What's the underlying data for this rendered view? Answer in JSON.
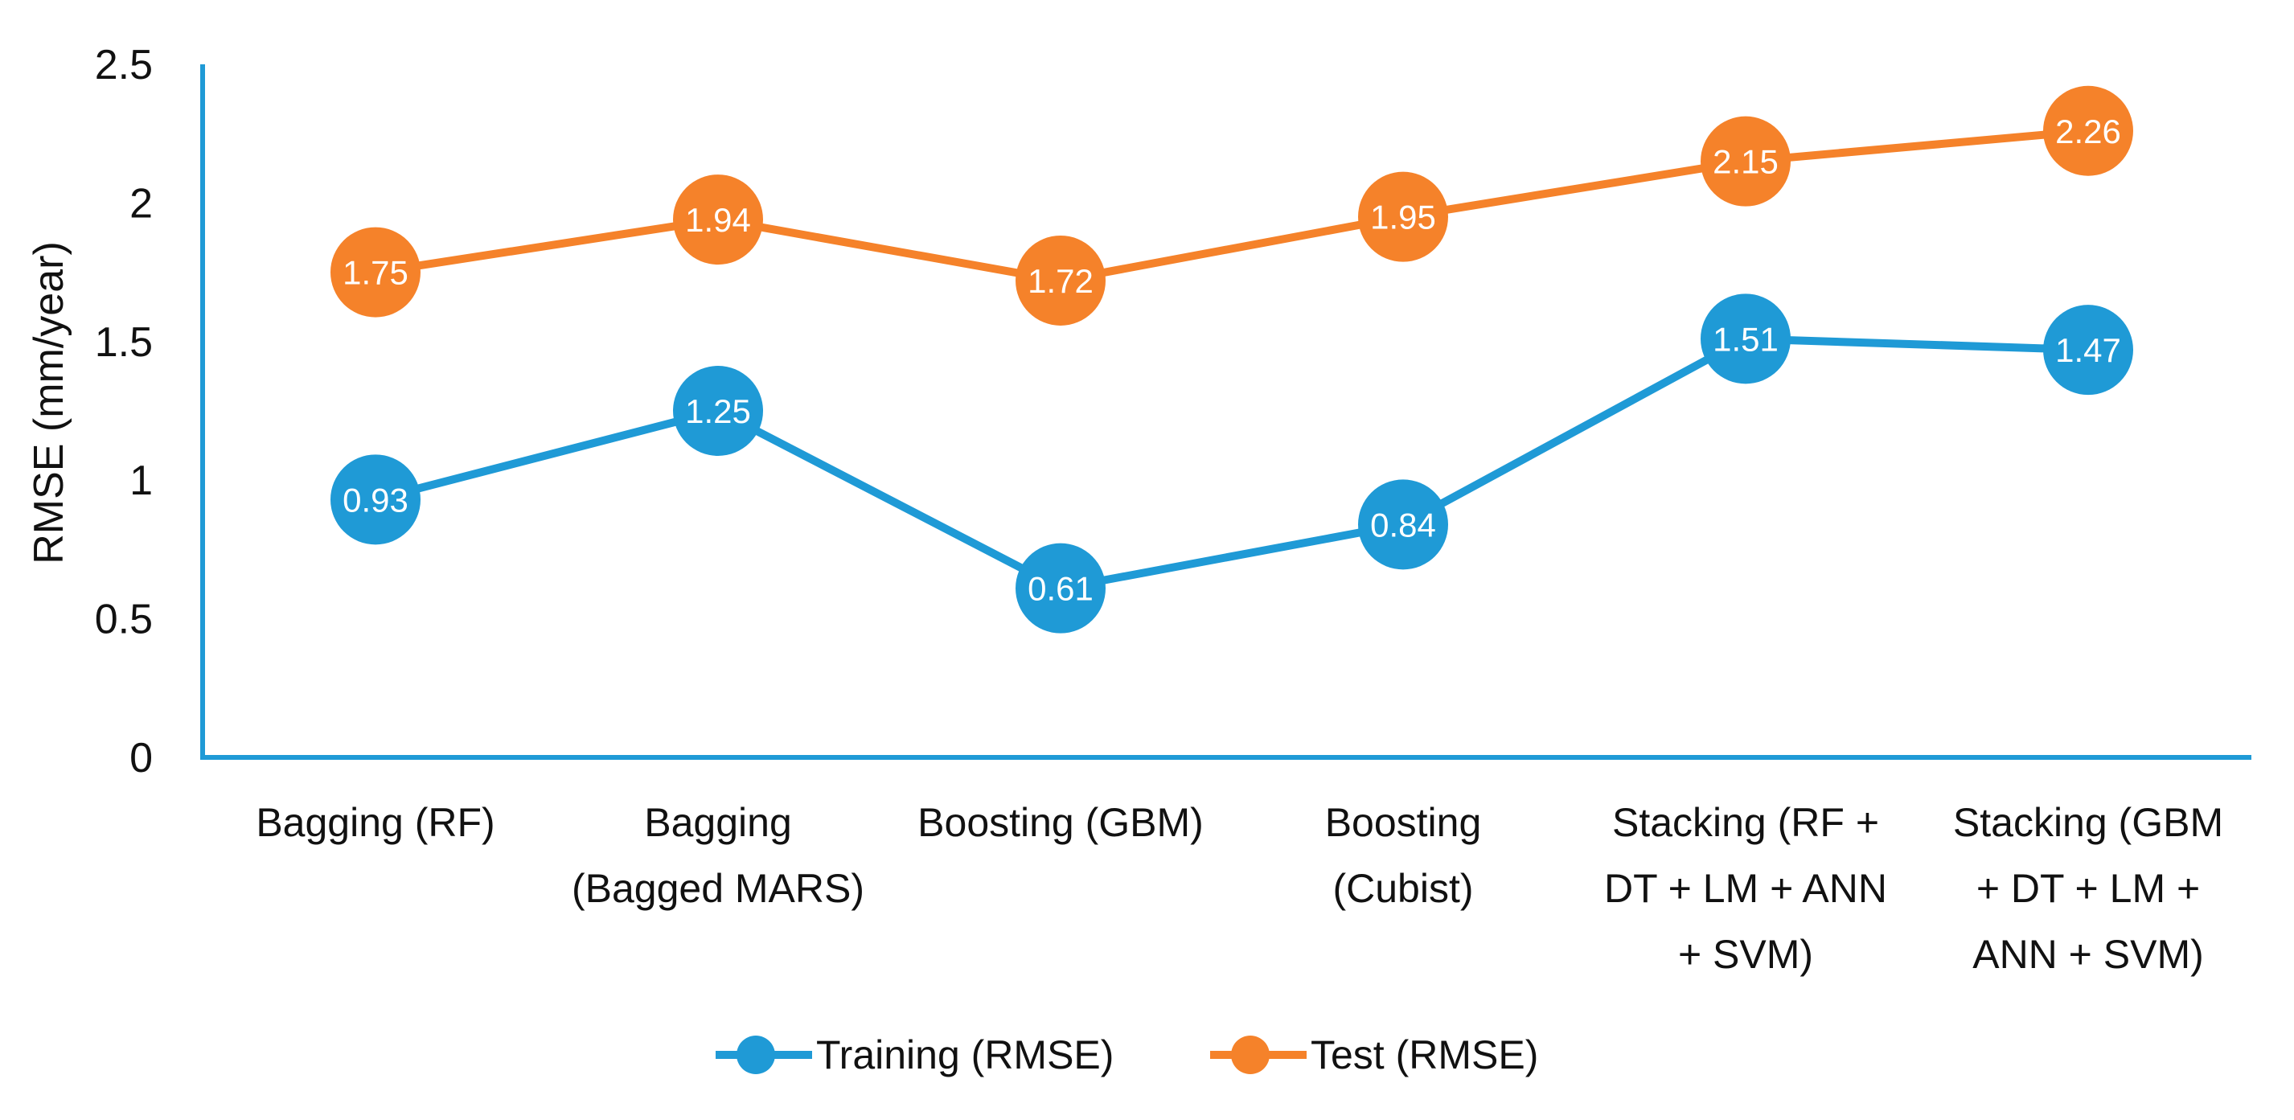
{
  "chart_data": {
    "type": "line",
    "title": "",
    "xlabel": "",
    "ylabel": "RMSE (mm/year)",
    "ylim": [
      0,
      2.5
    ],
    "yticks": [
      0,
      0.5,
      1,
      1.5,
      2,
      2.5
    ],
    "ytick_labels": [
      "0",
      "0.5",
      "1",
      "1.5",
      "2",
      "2.5"
    ],
    "grid": false,
    "legend_position": "bottom",
    "categories": [
      [
        "Bagging (RF)"
      ],
      [
        "Bagging",
        "(Bagged MARS)"
      ],
      [
        "Boosting (GBM)"
      ],
      [
        "Boosting",
        "(Cubist)"
      ],
      [
        "Stacking (RF +",
        "DT + LM + ANN",
        "+ SVM)"
      ],
      [
        "Stacking (GBM",
        "+ DT + LM +",
        "ANN + SVM)"
      ]
    ],
    "series": [
      {
        "name": "Training (RMSE)",
        "color": "#1f9ad6",
        "values": [
          0.93,
          1.25,
          0.61,
          0.84,
          1.51,
          1.47
        ],
        "labels": [
          "0.93",
          "1.25",
          "0.61",
          "0.84",
          "1.51",
          "1.47"
        ]
      },
      {
        "name": "Test (RMSE)",
        "color": "#f5822a",
        "values": [
          1.75,
          1.94,
          1.72,
          1.95,
          2.15,
          2.26
        ],
        "labels": [
          "1.75",
          "1.94",
          "1.72",
          "1.95",
          "2.15",
          "2.26"
        ]
      }
    ],
    "axis_color": "#1f9ad6"
  }
}
